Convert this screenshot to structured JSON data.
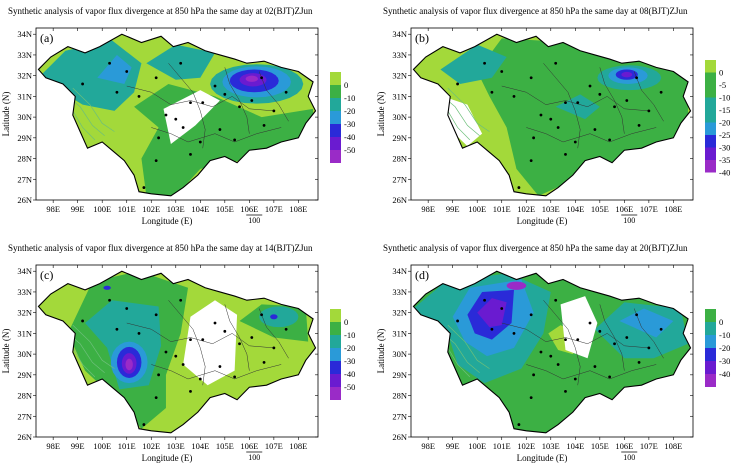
{
  "colors": {
    "light_green": "#a3d93a",
    "green": "#3cb044",
    "teal": "#22a89a",
    "blue_mid": "#2a9ad8",
    "blue": "#2a2ad8",
    "violet": "#6a1bd0",
    "purple": "#9a2bc7",
    "contour": "#6dbf7a",
    "border": "#000000"
  },
  "axes": {
    "xlabel": "Longitude (E)",
    "ylabel": "Latitude (N)",
    "x_ticks": [
      "98E",
      "99E",
      "100E",
      "101E",
      "102E",
      "103E",
      "104E",
      "105E",
      "106E",
      "107E",
      "108E"
    ],
    "y_ticks": [
      "34N",
      "33N",
      "32N",
      "31N",
      "30N",
      "29N",
      "28N",
      "27N",
      "26N"
    ],
    "xlim": [
      97.3,
      108.8
    ],
    "ylim": [
      26,
      34.3
    ],
    "scale_label": "100"
  },
  "chart_data": [
    {
      "type": "heatmap",
      "panel": "(a)",
      "title": "Synthetic analysis of vapor flux divergence at 850 hPa the same day at 02(BJT)ZJun",
      "legend_levels": [
        "0",
        "-10",
        "-20",
        "-30",
        "-40",
        "-50"
      ],
      "legend_colors": [
        "#a3d93a",
        "#3cb044",
        "#22a89a",
        "#2a9ad8",
        "#2a2ad8",
        "#6a1bd0",
        "#9a2bc7"
      ],
      "extreme_center": {
        "lon": 106.2,
        "lat": 31.8,
        "value": -50
      }
    },
    {
      "type": "heatmap",
      "panel": "(b)",
      "title": "Synthetic analysis of vapor flux divergence at 850 hPa the same day at 08(BJT)ZJun",
      "legend_levels": [
        "0",
        "-5",
        "-10",
        "-15",
        "-20",
        "-25",
        "-30",
        "-35",
        "-40"
      ],
      "legend_colors": [
        "#a3d93a",
        "#3cb044",
        "#3cb044",
        "#22a89a",
        "#22a89a",
        "#2a9ad8",
        "#2a2ad8",
        "#6a1bd0",
        "#9a2bc7"
      ],
      "extreme_center": {
        "lon": 106.1,
        "lat": 32.0,
        "value": -40
      }
    },
    {
      "type": "heatmap",
      "panel": "(c)",
      "title": "Synthetic analysis of vapor flux divergence at 850 hPa the same day at 14(BJT)ZJun",
      "legend_levels": [
        "0",
        "-10",
        "-20",
        "-30",
        "-40",
        "-50"
      ],
      "legend_colors": [
        "#a3d93a",
        "#3cb044",
        "#22a89a",
        "#2a9ad8",
        "#2a2ad8",
        "#6a1bd0",
        "#9a2bc7"
      ],
      "extreme_center": {
        "lon": 101.1,
        "lat": 29.6,
        "value": -50
      }
    },
    {
      "type": "heatmap",
      "panel": "(d)",
      "title": "Synthetic analysis of vapor flux divergence at 850 hPa the same day at 20(BJT)ZJun",
      "legend_levels": [
        "0",
        "-10",
        "-20",
        "-30",
        "-40"
      ],
      "legend_colors": [
        "#3cb044",
        "#22a89a",
        "#2a9ad8",
        "#2a2ad8",
        "#6a1bd0",
        "#9a2bc7"
      ],
      "extreme_center": {
        "lon": 100.6,
        "lat": 31.7,
        "value": -40
      }
    }
  ]
}
